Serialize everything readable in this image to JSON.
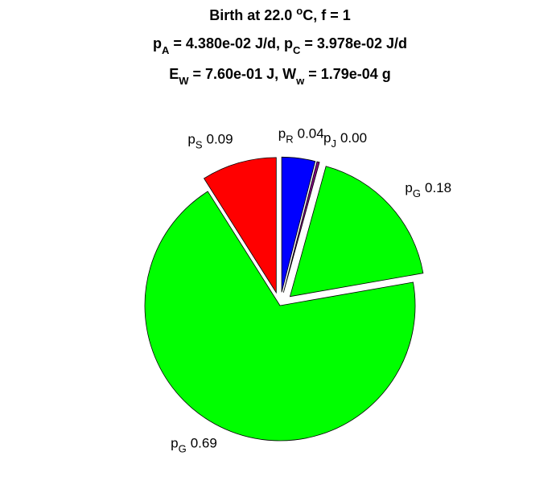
{
  "chart_data": {
    "type": "pie",
    "title": [
      [
        {
          "text": "Birth at 22.0 "
        },
        {
          "sup": "o"
        },
        {
          "text": "C, f = 1"
        }
      ],
      [
        {
          "text": "p"
        },
        {
          "sub": "A"
        },
        {
          "text": " = 4.380e-02 J/d, p"
        },
        {
          "sub": "C"
        },
        {
          "text": " = 3.978e-02 J/d"
        }
      ],
      [
        {
          "text": "E"
        },
        {
          "sub": "W"
        },
        {
          "text": " = 7.60e-01 J, W"
        },
        {
          "sub": "w"
        },
        {
          "text": " = 1.79e-04 g"
        }
      ]
    ],
    "categories": [
      {
        "base": "p",
        "sub": "R"
      },
      {
        "base": "p",
        "sub": "J"
      },
      {
        "base": "p",
        "sub": "G"
      },
      {
        "base": "p",
        "sub": "G"
      },
      {
        "base": "p",
        "sub": "S"
      }
    ],
    "values": [
      0.04,
      0.003,
      0.18,
      0.69,
      0.09
    ],
    "value_labels": [
      "0.04",
      "0.00",
      "0.18",
      "0.69",
      "0.09"
    ],
    "colors": [
      "#0000ff",
      "#800080",
      "#00ff00",
      "#00ff00",
      "#ff0000"
    ],
    "explode": [
      true,
      true,
      true,
      false,
      true
    ]
  }
}
